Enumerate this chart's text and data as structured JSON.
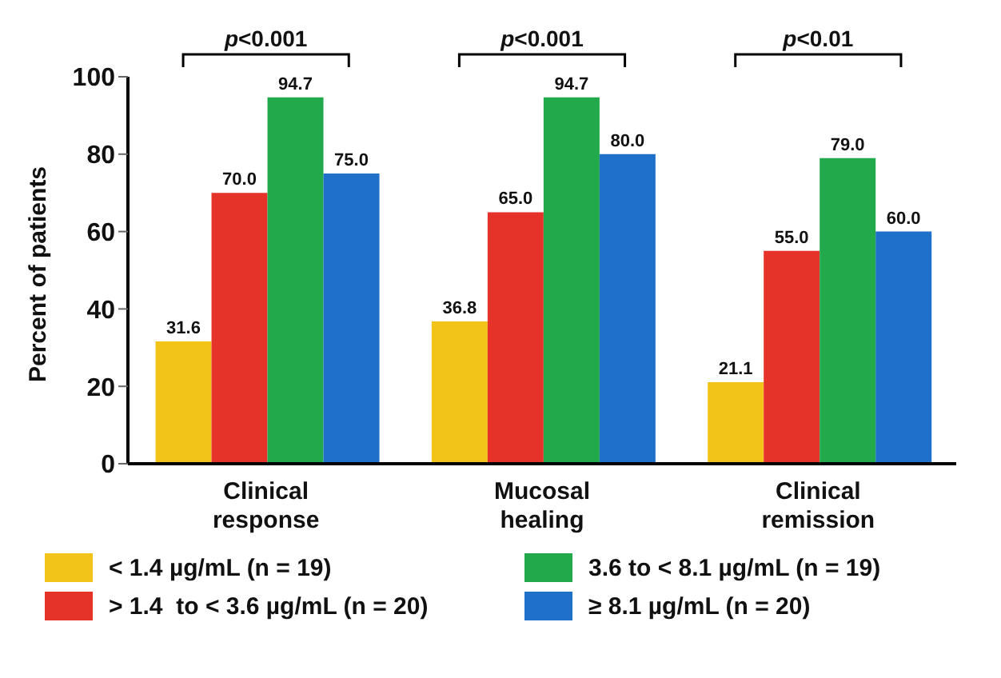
{
  "chart_data": {
    "type": "bar",
    "ylabel": "Percent of patients",
    "categories": [
      "Clinical response",
      "Mucosal healing",
      "Clinical remission"
    ],
    "series": [
      {
        "name": "< 1.4 µg/mL (n = 19)",
        "color": "#f2c318",
        "values": [
          31.6,
          36.8,
          21.1
        ],
        "value_labels": [
          "31.6",
          "36.8",
          "21.1"
        ]
      },
      {
        "name": "> 1.4  to < 3.6 µg/mL (n = 20)",
        "color": "#e5332a",
        "values": [
          70.0,
          65.0,
          55.0
        ],
        "value_labels": [
          "70.0",
          "65.0",
          "55.0"
        ]
      },
      {
        "name": "3.6 to < 8.1 µg/mL (n = 19)",
        "color": "#22a94b",
        "values": [
          94.7,
          94.7,
          79.0
        ],
        "value_labels": [
          "94.7",
          "94.7",
          "79.0"
        ]
      },
      {
        "name": "≥ 8.1 µg/mL (n = 20)",
        "color": "#1f70c8",
        "values": [
          75.0,
          80.0,
          60.0
        ],
        "value_labels": [
          "75.0",
          "80.0",
          "60.0"
        ]
      }
    ],
    "ylim": [
      0,
      100
    ],
    "yticks": [
      0,
      20,
      40,
      60,
      80,
      100
    ],
    "grid": false,
    "legend": "bottom",
    "annotations": [
      "p<0.001",
      "p<0.001",
      "p<0.01"
    ]
  }
}
